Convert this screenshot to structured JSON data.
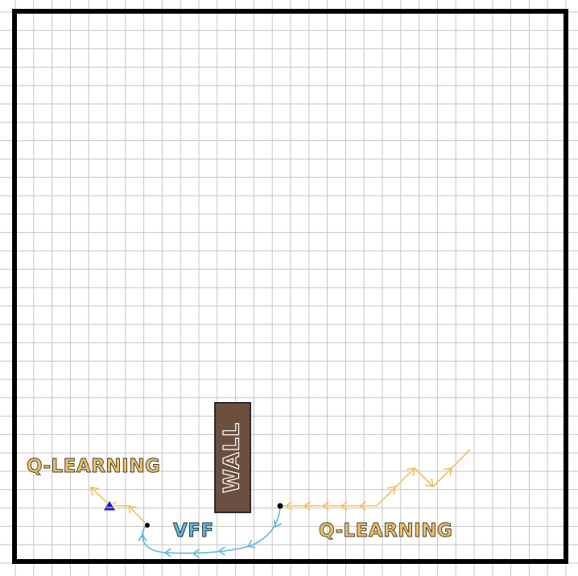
{
  "labels": {
    "wall": "WALL",
    "vff": "VFF",
    "q_learning_left": "Q-LEARNING",
    "q_learning_right": "Q-LEARNING"
  },
  "colors": {
    "q_learning": "#f0c060",
    "vff": "#5ab8e0",
    "wall_fill": "#6b4f3f",
    "wall_border": "#2a2a2a",
    "grid": "#c4c4c4",
    "frame": "#000000",
    "robot": "#1a1acc"
  },
  "icons": {
    "robot": "robot-triangle-icon"
  }
}
